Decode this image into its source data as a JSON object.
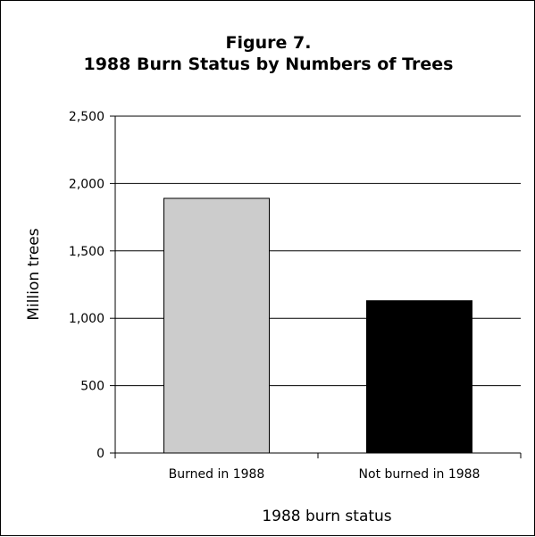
{
  "chart_data": {
    "type": "bar",
    "title_line1": "Figure 7.",
    "title_line2": "1988 Burn Status by Numbers of Trees",
    "xlabel": "1988 burn status",
    "ylabel": "Million trees",
    "categories": [
      "Burned in 1988",
      "Not burned in 1988"
    ],
    "values": [
      1890,
      1130
    ],
    "bar_colors": [
      "#cccccc",
      "#000000"
    ],
    "ylim": [
      0,
      2500
    ],
    "yticks": [
      0,
      500,
      1000,
      1500,
      2000,
      2500
    ],
    "ytick_labels": [
      "0",
      "500",
      "1,000",
      "1,500",
      "2,000",
      "2,500"
    ],
    "grid": true,
    "legend": false
  }
}
